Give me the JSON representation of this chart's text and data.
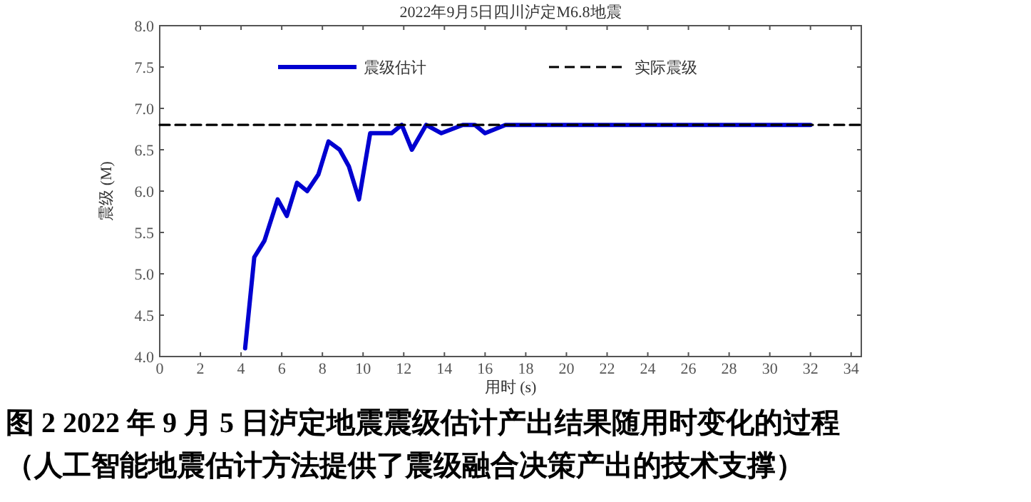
{
  "chart_data": {
    "type": "line",
    "title": "2022年9月5日四川泸定M6.8地震",
    "xlabel": "用时 (s)",
    "ylabel": "震级 (M)",
    "xlim": [
      0,
      34.5
    ],
    "xticks": [
      0,
      2,
      4,
      6,
      8,
      10,
      12,
      14,
      16,
      18,
      20,
      22,
      24,
      26,
      28,
      30,
      32,
      34
    ],
    "ylim": [
      4,
      8
    ],
    "yticks": [
      {
        "value": 4,
        "label": "4.0"
      },
      {
        "value": 4.5,
        "label": "4.5"
      },
      {
        "value": 5,
        "label": "5.0"
      },
      {
        "value": 5.5,
        "label": "5.5"
      },
      {
        "value": 6,
        "label": "6.0"
      },
      {
        "value": 6.5,
        "label": "6.5"
      },
      {
        "value": 7,
        "label": "7.0"
      },
      {
        "value": 7.5,
        "label": "7.5"
      },
      {
        "value": 8,
        "label": "8.0"
      }
    ],
    "grid": false,
    "legend": "top",
    "marker": "none",
    "series": [
      {
        "name": "震级估计",
        "color": "#0000d0",
        "line_style": "solid",
        "x": [
          4.2,
          4.65,
          5.15,
          5.8,
          6.25,
          6.75,
          7.25,
          7.8,
          8.3,
          8.85,
          9.3,
          9.8,
          10.35,
          11.4,
          11.9,
          12.4,
          13.1,
          13.85,
          14.9,
          15.5,
          16.0,
          17.0,
          32.0
        ],
        "values": [
          4.1,
          5.2,
          5.4,
          5.9,
          5.7,
          6.1,
          6.0,
          6.2,
          6.6,
          6.5,
          6.3,
          5.9,
          6.7,
          6.7,
          6.8,
          6.5,
          6.8,
          6.7,
          6.8,
          6.8,
          6.7,
          6.8,
          6.8
        ]
      },
      {
        "name": "实际震级",
        "color": "#000000",
        "line_style": "dashed",
        "x": [
          0,
          34.5
        ],
        "values": [
          6.8,
          6.8
        ]
      }
    ],
    "annotations": [
      "图 2 2022 年 9 月 5 日泸定地震震级估计产出结果随用时变化的过程",
      "（人工智能地震估计方法提供了震级融合决策产出的技术支撑）"
    ]
  }
}
